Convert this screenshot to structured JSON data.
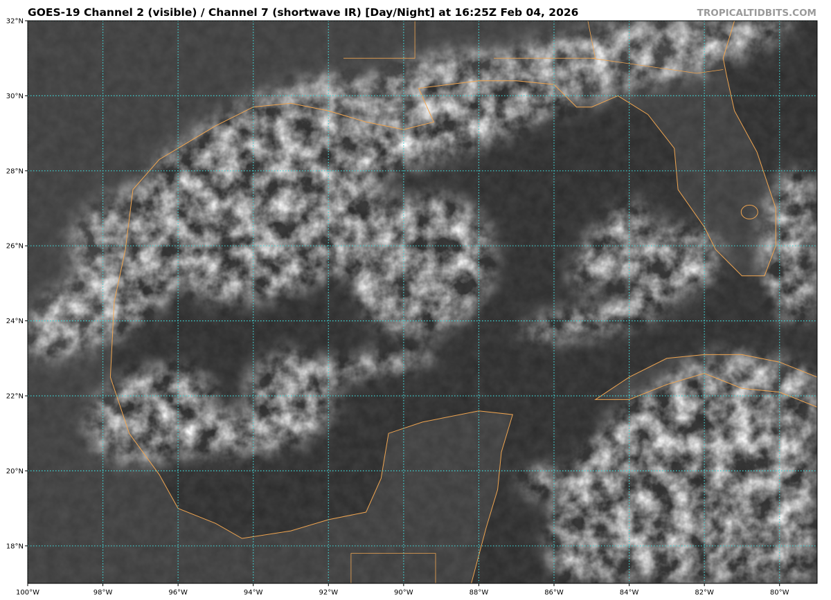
{
  "title": "GOES-19 Channel 2 (visible) / Channel 7 (shortwave IR) [Day/Night] at 16:25Z Feb 04, 2026",
  "watermark": "TROPICALTIDBITS.COM",
  "map": {
    "extent": {
      "lon_min": -100,
      "lon_max": -79,
      "lat_min": 17,
      "lat_max": 32
    },
    "colors": {
      "coastline": "#f0a550",
      "gridlines": "#3fd6d6",
      "ocean": "#2b2b2b",
      "land": "#3c3c3c",
      "cloud": "#e6e6e6"
    },
    "lat_labels": [
      {
        "lat": 32,
        "label": "32°N"
      },
      {
        "lat": 30,
        "label": "30°N"
      },
      {
        "lat": 28,
        "label": "28°N"
      },
      {
        "lat": 26,
        "label": "26°N"
      },
      {
        "lat": 24,
        "label": "24°N"
      },
      {
        "lat": 22,
        "label": "22°N"
      },
      {
        "lat": 20,
        "label": "20°N"
      },
      {
        "lat": 18,
        "label": "18°N"
      }
    ],
    "lon_labels": [
      {
        "lon": -100,
        "label": "100°W"
      },
      {
        "lon": -98,
        "label": "98°W"
      },
      {
        "lon": -96,
        "label": "96°W"
      },
      {
        "lon": -94,
        "label": "94°W"
      },
      {
        "lon": -92,
        "label": "92°W"
      },
      {
        "lon": -90,
        "label": "90°W"
      },
      {
        "lon": -88,
        "label": "88°W"
      },
      {
        "lon": -86,
        "label": "86°W"
      },
      {
        "lon": -84,
        "label": "84°W"
      },
      {
        "lon": -82,
        "label": "82°W"
      },
      {
        "lon": -80,
        "label": "80°W"
      }
    ]
  }
}
